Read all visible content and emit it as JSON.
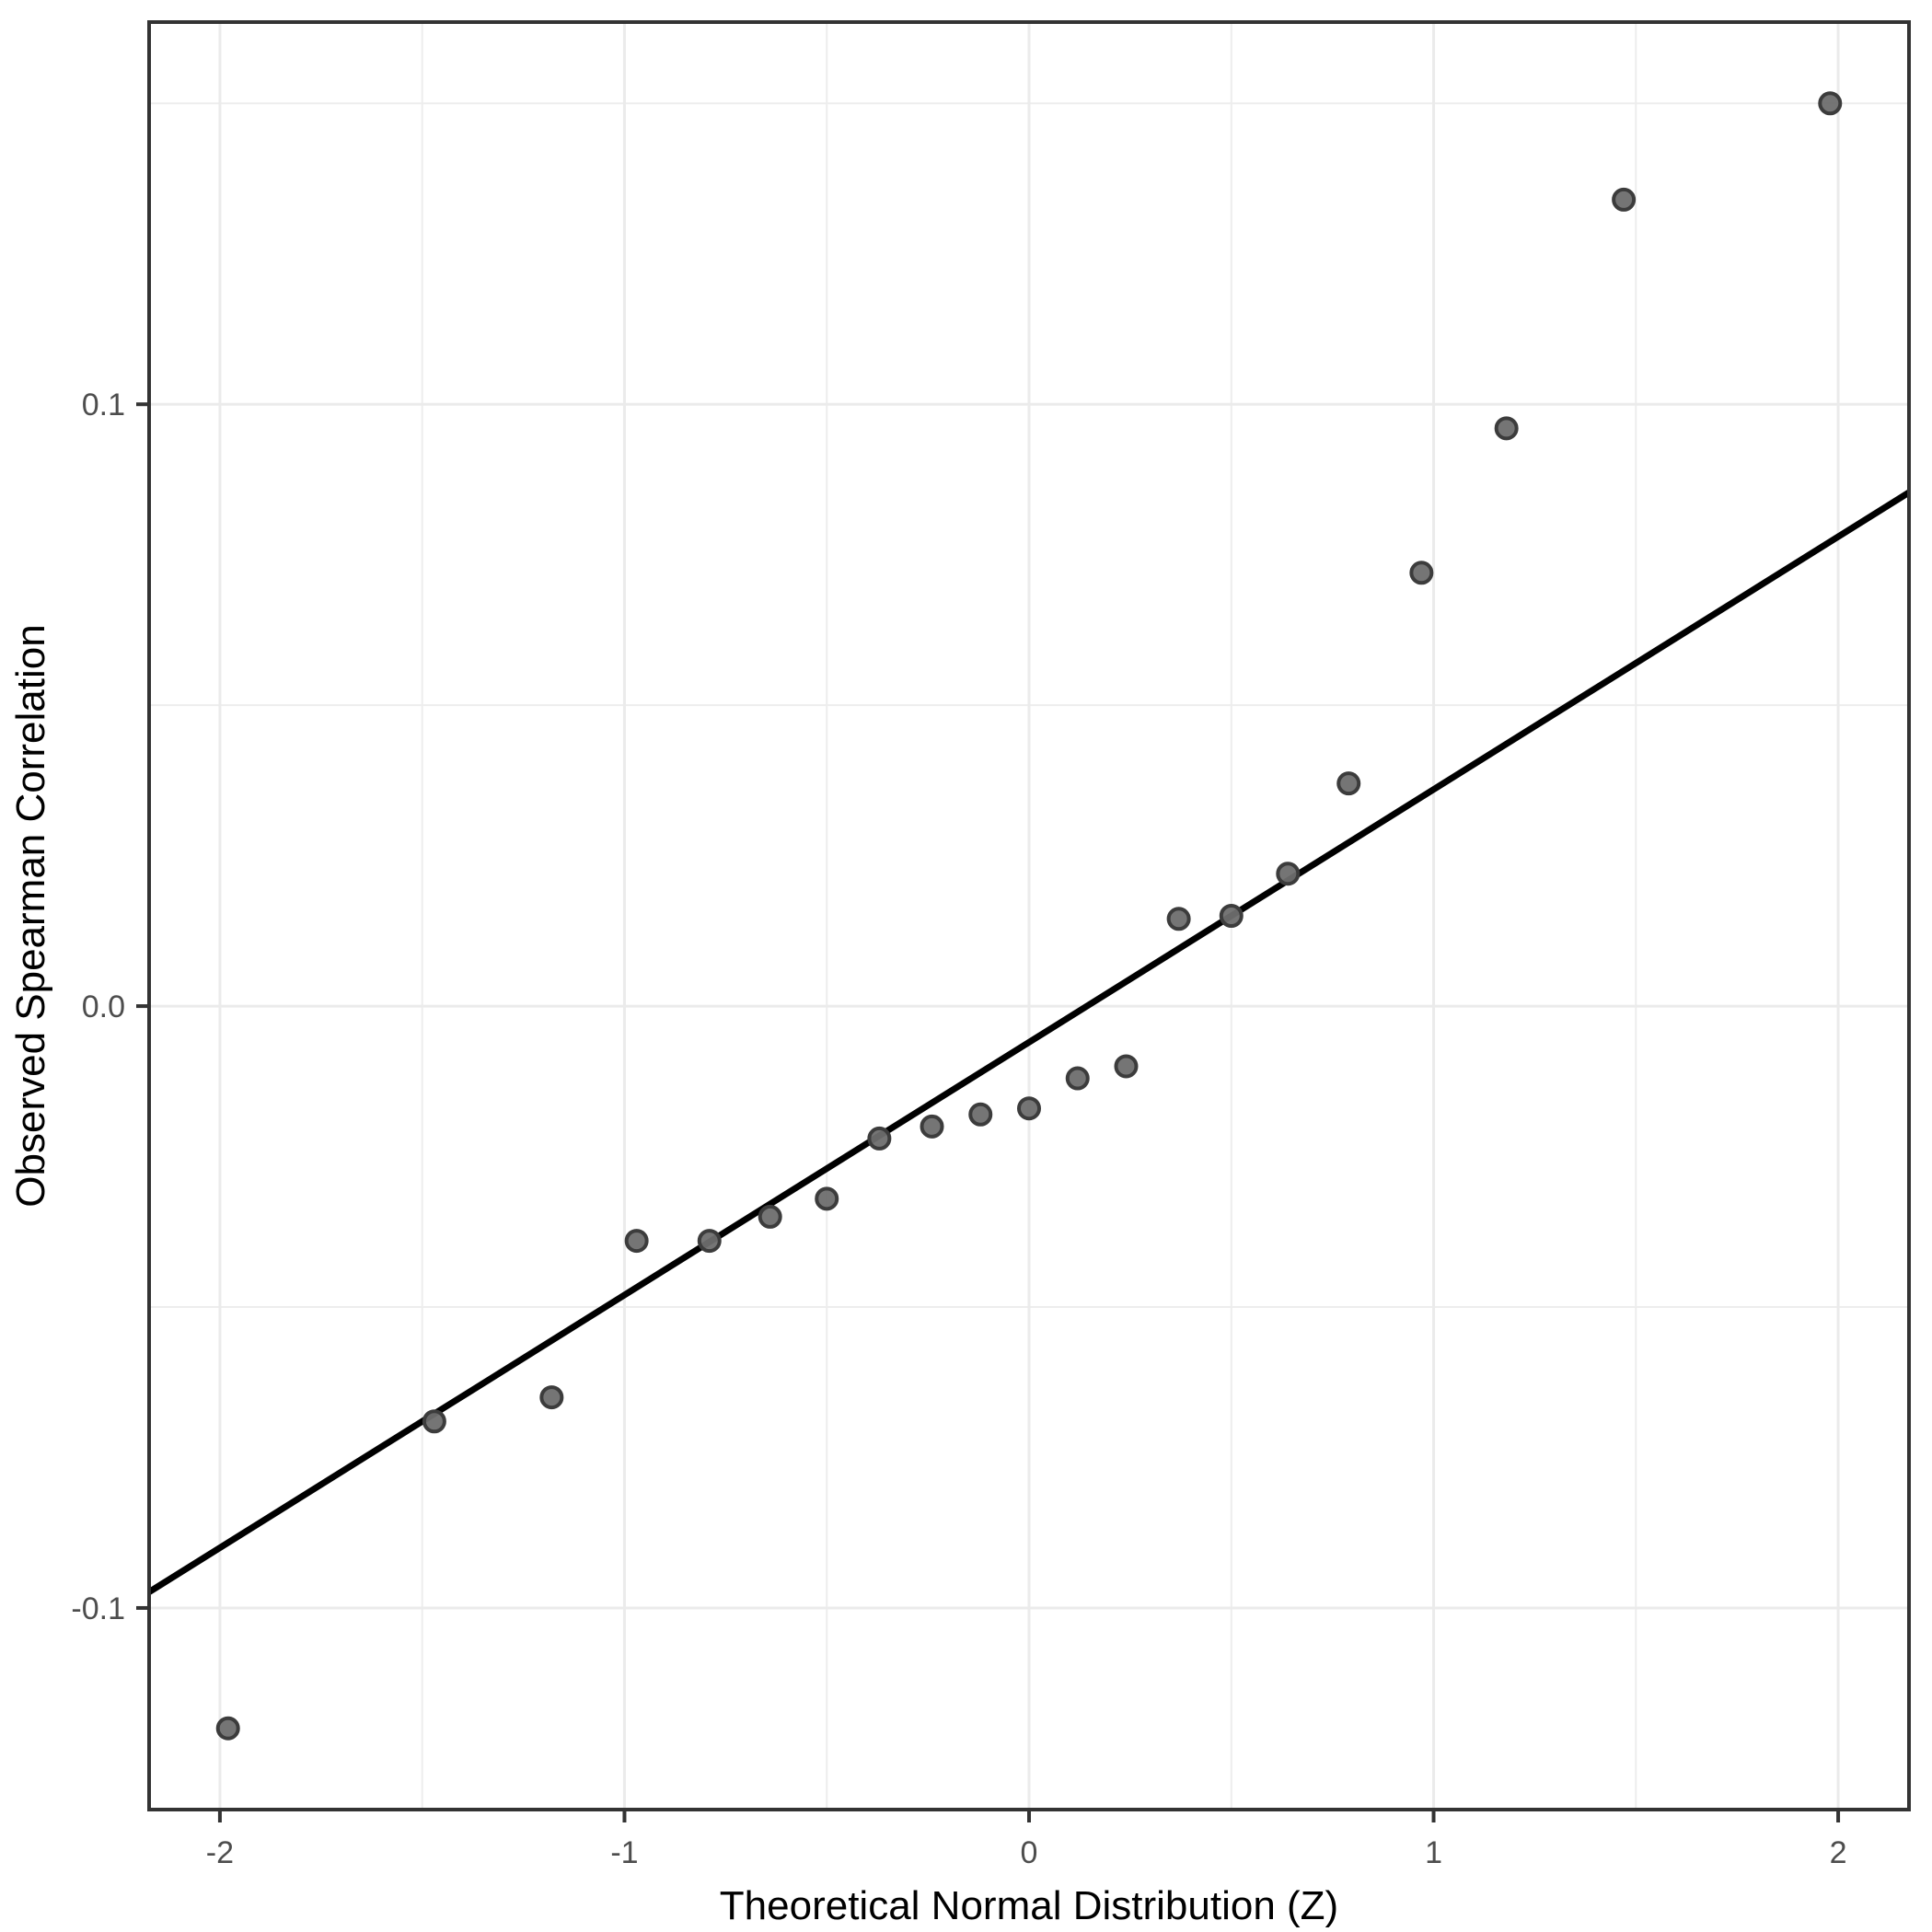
{
  "chart_data": {
    "type": "scatter",
    "title": "",
    "xlabel": "Theoretical Normal Distribution (Z)",
    "ylabel": "Observed Spearman Correlation",
    "legend": "none",
    "grid": "on",
    "xlim": [
      -2.175,
      2.175
    ],
    "ylim": [
      -0.1335,
      0.1635
    ],
    "x_ticks": {
      "values": [
        -2,
        -1,
        0,
        1,
        2
      ],
      "labels": [
        "-2",
        "-1",
        "0",
        "1",
        "2"
      ]
    },
    "y_ticks": {
      "values": [
        0.1,
        0.0,
        -0.1
      ],
      "labels": [
        "0.1",
        "0.0",
        "-0.1"
      ]
    },
    "x_minor_gridlines": [
      -1.5,
      -0.5,
      0.5,
      1.5
    ],
    "y_minor_gridlines": [
      0.15,
      0.05,
      -0.05
    ],
    "points": [
      [
        -1.98,
        -0.12
      ],
      [
        -1.47,
        -0.069
      ],
      [
        -1.18,
        -0.065
      ],
      [
        -0.97,
        -0.039
      ],
      [
        -0.79,
        -0.039
      ],
      [
        -0.64,
        -0.035
      ],
      [
        -0.5,
        -0.032
      ],
      [
        -0.37,
        -0.022
      ],
      [
        -0.24,
        -0.02
      ],
      [
        -0.12,
        -0.018
      ],
      [
        0.0,
        -0.017
      ],
      [
        0.12,
        -0.012
      ],
      [
        0.24,
        -0.01
      ],
      [
        0.37,
        0.0145
      ],
      [
        0.5,
        0.015
      ],
      [
        0.64,
        0.022
      ],
      [
        0.79,
        0.037
      ],
      [
        0.97,
        0.072
      ],
      [
        1.18,
        0.096
      ],
      [
        1.47,
        0.134
      ],
      [
        1.98,
        0.15
      ]
    ],
    "reference_line": {
      "slope": 0.042,
      "intercept": -0.006
    },
    "colors": {
      "background": "#ffffff",
      "panel_background": "#ffffff",
      "panel_border": "#333333",
      "grid_major": "#ebebeb",
      "grid_minor": "#ededed",
      "point_fill": "#6e6e6e",
      "point_stroke": "#3c3c3c",
      "reference_line": "#000000",
      "tick_mark": "#333333",
      "tick_label": "#4d4d4d",
      "axis_title": "#000000"
    }
  }
}
